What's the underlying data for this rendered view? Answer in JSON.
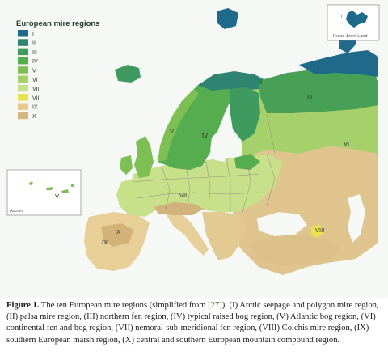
{
  "map": {
    "legend": {
      "title": "European mire regions",
      "items": [
        {
          "label": "I",
          "color": "#1f6a8a"
        },
        {
          "label": "II",
          "color": "#2e8470"
        },
        {
          "label": "III",
          "color": "#3f9a5f"
        },
        {
          "label": "IV",
          "color": "#56ad4f"
        },
        {
          "label": "V",
          "color": "#7dbf52"
        },
        {
          "label": "VI",
          "color": "#a6d16a"
        },
        {
          "label": "VII",
          "color": "#c8e08a"
        },
        {
          "label": "VIII",
          "color": "#e6e44a"
        },
        {
          "label": "IX",
          "color": "#ecc98a"
        },
        {
          "label": "X",
          "color": "#d5b77e"
        }
      ]
    },
    "region_labels": [
      "I",
      "II",
      "III",
      "IV",
      "V",
      "VI",
      "VII",
      "VIII",
      "IX",
      "X"
    ],
    "inset_franz_josef": {
      "title": "Franz Josef Land",
      "region_label": "I"
    },
    "inset_azores": {
      "title": "Azores",
      "region_label": "V"
    },
    "colors": {
      "sea": "#f6f8f6",
      "border": "#8a8a8a"
    }
  },
  "caption": {
    "lead": "Figure 1.",
    "before_ref": " The ten European mire regions (simplified from ",
    "ref": "[27]",
    "after_ref": "). (I) Arctic seepage and polygon mire region, (II) palsa mire region, (III) northern fen region, (IV) typical raised bog region, (V) Atlantic bog region, (VI) continental fen and bog region, (VII) nemoral-sub-meridional fen region, (VIII) Colchis mire region, (IX) southern European marsh region, (X) central and southern European mountain compound region."
  }
}
